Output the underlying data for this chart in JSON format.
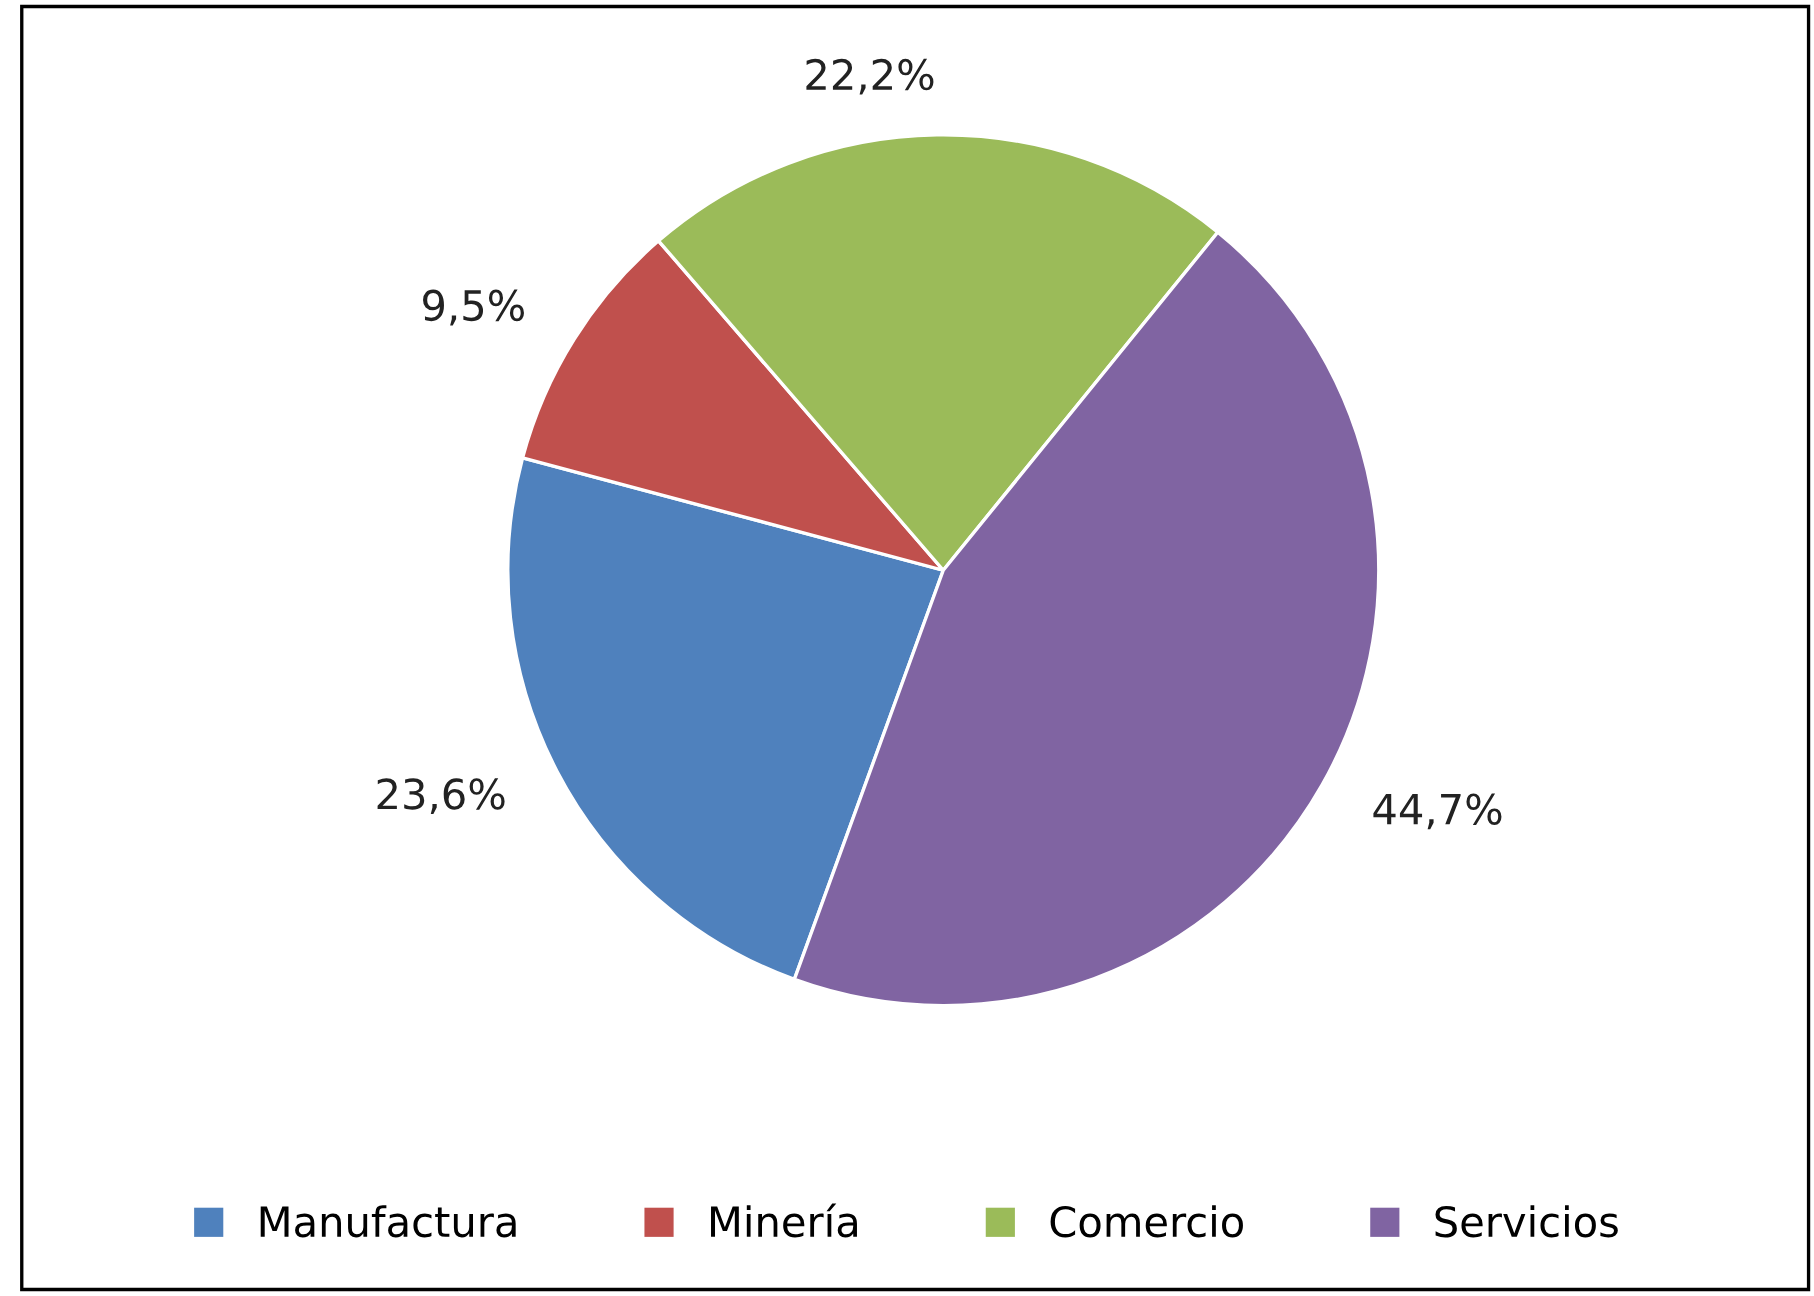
{
  "chart_data": {
    "type": "pie",
    "categories": [
      "Manufactura",
      "Minería",
      "Comercio",
      "Servicios"
    ],
    "values": [
      23.6,
      9.5,
      22.2,
      44.7
    ],
    "colors": [
      "#4f81bd",
      "#c0504d",
      "#9bbb59",
      "#8064a2"
    ],
    "value_labels": [
      "23,6%",
      "9,5%",
      "22,2%",
      "44,7%"
    ],
    "legend": "bottom"
  }
}
